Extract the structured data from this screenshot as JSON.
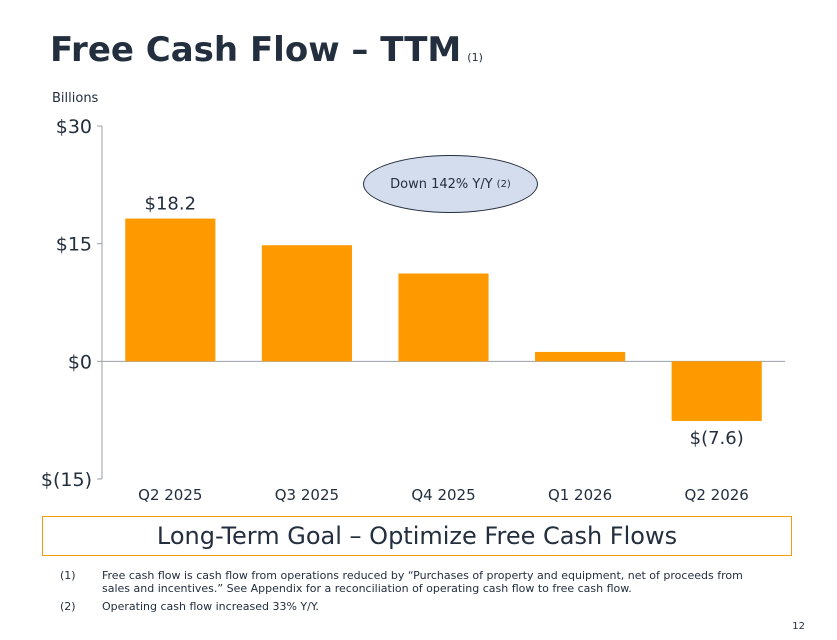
{
  "header": {
    "title": "Free Cash Flow – TTM",
    "title_note": "(1)"
  },
  "units_label": "Billions",
  "callout": {
    "text": "Down 142% Y/Y",
    "note": "(2)"
  },
  "goal": "Long-Term Goal – Optimize Free Cash Flows",
  "footnotes": [
    {
      "num": "(1)",
      "text": "Free cash flow is cash flow from operations reduced by “Purchases of property and equipment, net of proceeds from sales and incentives.” See Appendix for a reconciliation of operating cash flow to free cash flow."
    },
    {
      "num": "(2)",
      "text": "Operating cash flow increased 33% Y/Y."
    }
  ],
  "page_number": "12",
  "colors": {
    "bar": "#ff9900",
    "text": "#232f3e",
    "callout_fill": "#d4dded",
    "goal_border": "#f39c12"
  },
  "chart_data": {
    "type": "bar",
    "categories": [
      "Q2 2025",
      "Q3 2025",
      "Q4 2025",
      "Q1 2026",
      "Q2 2026"
    ],
    "values": [
      18.2,
      14.8,
      11.2,
      1.2,
      -7.6
    ],
    "data_labels": [
      "$18.2",
      "",
      "",
      "",
      "$(7.6)"
    ],
    "ylim": [
      -15,
      30
    ],
    "yticks": [
      {
        "value": 30,
        "label": "$30"
      },
      {
        "value": 15,
        "label": "$15"
      },
      {
        "value": 0,
        "label": "$0"
      },
      {
        "value": -15,
        "label": "$(15)"
      }
    ],
    "grid": false
  }
}
